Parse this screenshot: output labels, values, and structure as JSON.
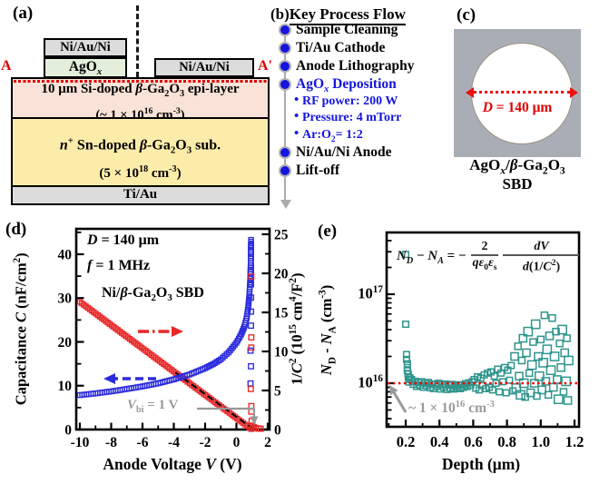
{
  "panel_a": {
    "label": "(a)",
    "section_left": "A",
    "section_right": "A'",
    "anode_metal_label": "Ni/Au/Ni",
    "agox_label_html": "AgO<sub><i>x</i></sub>",
    "cathode_pad_label": "Ni/Au/Ni",
    "epi_line1_html": "10 μm Si-doped <i>β</i>-Ga<sub>2</sub>O<sub>3</sub> epi-layer",
    "epi_line2_html": "(~ 1 × 10<sup>16</sup> cm<sup>-3</sup>)",
    "sub_line1_html": "<i>n</i><sup>+</sup> Sn-doped <i>β</i>-Ga<sub>2</sub>O<sub>3</sub> sub.",
    "sub_line2_html": "(5 × 10<sup>18</sup> cm<sup>-3</sup>)",
    "bottom_metal_label": "Ti/Au",
    "colors": {
      "metal": "#dcdcdc",
      "agox": "#e3efda",
      "epi": "#f9e2d8",
      "substrate": "#fcecaa",
      "marker_red": "#e00000"
    }
  },
  "panel_b": {
    "label": "(b)",
    "title": "Key Process Flow",
    "accent_blue": "#1515dd",
    "items": [
      {
        "type": "main",
        "accent": false,
        "label_html": "Sample Cleaning"
      },
      {
        "type": "main",
        "accent": false,
        "label_html": "Ti/Au Cathode"
      },
      {
        "type": "main",
        "accent": false,
        "label_html": "Anode Lithography"
      },
      {
        "type": "main",
        "accent": true,
        "label_html": "AgO<sub><i>x</i></sub> Deposition"
      },
      {
        "type": "sub",
        "accent": true,
        "label_html": "RF power: 200 W"
      },
      {
        "type": "sub",
        "accent": true,
        "label_html": "Pressure: 4 mTorr"
      },
      {
        "type": "sub",
        "accent": true,
        "label_html": "Ar:O<sub>2</sub>= 1:2"
      },
      {
        "type": "main",
        "accent": false,
        "label_html": "Ni/Au/Ni Anode"
      },
      {
        "type": "main",
        "accent": false,
        "label_html": "Lift-off"
      }
    ]
  },
  "panel_c": {
    "label": "(c)",
    "diameter_html": "<i>D</i> = 140 μm",
    "caption_line1_html": "AgO<sub><i>x</i></sub>/<i>β</i>-Ga<sub>2</sub>O<sub>3</sub>",
    "caption_line2": "SBD",
    "photo_bg": "#a9aeb6",
    "arrow_red": "#ee1111"
  },
  "chart_data": [
    {
      "id": "panel_d_cv",
      "panel_label": "(d)",
      "type": "scatter",
      "xlabel_html": "Anode Voltage <i>V</i> (V)",
      "ylabel_left_html": "Capacitance <i>C</i> (nF/cm<sup>2</sup>)",
      "ylabel_right_html": "1/<i>C</i><sup>2</sup> (10<sup>15</sup> cm<sup>4</sup>/F<sup>2</sup>)",
      "xlim": [
        -10,
        2
      ],
      "ylim_left": [
        0,
        45.8
      ],
      "ylim_right": [
        0,
        25.7
      ],
      "xticks": [
        -10,
        -8,
        -6,
        -4,
        -2,
        0,
        2
      ],
      "yticks_left": [
        0,
        10,
        20,
        30,
        40
      ],
      "yticks_right": [
        0,
        5,
        10,
        15,
        20,
        25
      ],
      "annotation_line1_html": "<i>D</i> = 140 μm",
      "annotation_line2_html": "<i>f</i> = 1 MHz",
      "annotation_line3_html": "Ni/<i>β</i>-Ga<sub>2</sub>O<sub>3</sub> SBD",
      "vbi_annotation_html": "<i>V</i><sub>bi</sub> = 1 V",
      "colors": {
        "capacitance": "#2b2bdd",
        "inverse_c2": "#ea2727",
        "fit_line": "#000000",
        "annotation_gray": "#989898"
      },
      "series": [
        {
          "name": "capacitance_C",
          "axis": "left",
          "marker": "open-square",
          "color": "#2b2bdd",
          "points": [
            [
              -10,
              7.85
            ],
            [
              -9,
              8.25
            ],
            [
              -8,
              8.7
            ],
            [
              -7,
              9.25
            ],
            [
              -6,
              9.85
            ],
            [
              -5,
              10.55
            ],
            [
              -4,
              11.45
            ],
            [
              -3,
              12.55
            ],
            [
              -2,
              14.0
            ],
            [
              -1.5,
              14.9
            ],
            [
              -1,
              16.0
            ],
            [
              -0.5,
              17.6
            ],
            [
              0,
              19.8
            ],
            [
              0.3,
              21.7
            ],
            [
              0.5,
              23.4
            ],
            [
              0.65,
              25.4
            ],
            [
              0.75,
              27.8
            ],
            [
              0.82,
              30.5
            ],
            [
              0.87,
              33.5
            ],
            [
              0.9,
              36.5
            ],
            [
              0.92,
              39.5
            ],
            [
              0.93,
              42.0
            ],
            [
              0.935,
              43.3
            ]
          ]
        },
        {
          "name": "inverse_C2",
          "axis": "right",
          "marker": "open-square",
          "color": "#ea2727",
          "points": [
            [
              -10,
              16.35
            ],
            [
              0.95,
              0.06
            ]
          ]
        },
        {
          "name": "capacitance_forward_scatter",
          "axis": "right",
          "marker": "open-square",
          "color": "#2b2bdd",
          "points": [
            [
              0.93,
              23.5
            ],
            [
              0.93,
              22.7
            ],
            [
              0.93,
              21.9
            ],
            [
              0.93,
              21.0
            ],
            [
              0.93,
              20.2
            ],
            [
              0.93,
              19.4
            ],
            [
              0.93,
              18.6
            ],
            [
              0.93,
              16.9
            ],
            [
              0.93,
              15.1
            ],
            [
              0.93,
              13.3
            ],
            [
              0.9,
              10.1
            ],
            [
              0.93,
              8.1
            ],
            [
              0.9,
              5.9
            ]
          ]
        },
        {
          "name": "inverse_C2_forward_scatter",
          "axis": "right",
          "marker": "open-square",
          "color": "#ea2727",
          "points": [
            [
              0.95,
              19.6
            ],
            [
              0.95,
              11.8
            ],
            [
              0.95,
              10.5
            ],
            [
              0.92,
              5.2
            ],
            [
              0.95,
              3.0
            ],
            [
              0.95,
              2.3
            ],
            [
              0.97,
              1.1
            ],
            [
              1.02,
              0.5
            ],
            [
              1.12,
              0.3
            ],
            [
              1.25,
              0.18
            ],
            [
              1.42,
              0.12
            ],
            [
              1.55,
              0.1
            ]
          ]
        }
      ],
      "fit_line": {
        "axis": "right",
        "from": [
          -3.9,
          7.3
        ],
        "to": [
          1.1,
          0.02
        ]
      }
    },
    {
      "id": "panel_e_doping",
      "panel_label": "(e)",
      "type": "scatter",
      "xlabel_html": "Depth (μm)",
      "ylabel_html": "<i>N</i><sub>D</sub> - <i>N</i><sub>A</sub> (cm<sup>-3</sup>)",
      "xlim": [
        0.08,
        1.23
      ],
      "xticks": [
        0.2,
        0.4,
        0.6,
        0.8,
        1.0,
        1.2
      ],
      "y_scale": "log",
      "y_unit": "1e16 cm^-3",
      "ylog_ticks_html": [
        "10<sup>16</sup>",
        "10<sup>17</sup>"
      ],
      "marker_color": "#2f958d",
      "reference_line": {
        "value_1e16": 1,
        "color": "#f10000",
        "style": "dotted"
      },
      "reference_annotation_html": "~ 1 × 10<sup>16</sup> cm<sup>-3</sup>",
      "formula": {
        "lhs_html": "<i>N<sub>D</sub></i> − <i>N<sub>A</sub></i> = −",
        "frac1_num_html": "2",
        "frac1_den_html": "<i>qε</i><sub>0</sub><i>ε</i><sub>s</sub>",
        "frac2_num_html": "<i>dV</i>",
        "frac2_den_html": "<i>d</i>(1/<i>C</i><sup>2</sup>)"
      },
      "points": [
        [
          0.2,
          28
        ],
        [
          0.2,
          4.6
        ],
        [
          0.205,
          2.1
        ],
        [
          0.205,
          1.85
        ],
        [
          0.21,
          1.65
        ],
        [
          0.21,
          1.5
        ],
        [
          0.21,
          1.38
        ],
        [
          0.215,
          1.27
        ],
        [
          0.215,
          1.17
        ],
        [
          0.22,
          1.1
        ],
        [
          0.22,
          1.03
        ],
        [
          0.225,
          1.15
        ],
        [
          0.235,
          1.1
        ],
        [
          0.245,
          0.97
        ],
        [
          0.255,
          1.05
        ],
        [
          0.265,
          0.92
        ],
        [
          0.275,
          1.02
        ],
        [
          0.285,
          0.95
        ],
        [
          0.295,
          1.04
        ],
        [
          0.305,
          0.9
        ],
        [
          0.315,
          1.0
        ],
        [
          0.325,
          0.94
        ],
        [
          0.335,
          1.02
        ],
        [
          0.345,
          0.89
        ],
        [
          0.355,
          0.98
        ],
        [
          0.365,
          0.87
        ],
        [
          0.375,
          0.97
        ],
        [
          0.385,
          0.92
        ],
        [
          0.395,
          1.0
        ],
        [
          0.405,
          0.86
        ],
        [
          0.415,
          0.96
        ],
        [
          0.425,
          0.9
        ],
        [
          0.435,
          0.98
        ],
        [
          0.445,
          0.85
        ],
        [
          0.455,
          0.95
        ],
        [
          0.465,
          0.88
        ],
        [
          0.475,
          0.97
        ],
        [
          0.485,
          0.86
        ],
        [
          0.495,
          0.93
        ],
        [
          0.505,
          0.89
        ],
        [
          0.515,
          0.96
        ],
        [
          0.525,
          0.87
        ],
        [
          0.535,
          0.95
        ],
        [
          0.545,
          0.9
        ],
        [
          0.555,
          0.99
        ],
        [
          0.565,
          0.92
        ],
        [
          0.575,
          1.01
        ],
        [
          0.585,
          0.95
        ],
        [
          0.595,
          1.04
        ],
        [
          0.605,
          1.1
        ],
        [
          0.615,
          0.88
        ],
        [
          0.625,
          1.18
        ],
        [
          0.635,
          0.84
        ],
        [
          0.645,
          1.14
        ],
        [
          0.655,
          0.94
        ],
        [
          0.665,
          1.24
        ],
        [
          0.675,
          0.87
        ],
        [
          0.685,
          1.3
        ],
        [
          0.695,
          0.9
        ],
        [
          0.705,
          1.34
        ],
        [
          0.715,
          0.84
        ],
        [
          0.725,
          1.2
        ],
        [
          0.735,
          1.0
        ],
        [
          0.745,
          1.44
        ],
        [
          0.755,
          0.8
        ],
        [
          0.765,
          1.3
        ],
        [
          0.775,
          1.04
        ],
        [
          0.785,
          1.5
        ],
        [
          0.795,
          0.78
        ],
        [
          0.805,
          1.4
        ],
        [
          0.815,
          1.08
        ],
        [
          0.825,
          1.58
        ],
        [
          0.835,
          0.82
        ],
        [
          0.845,
          2.0
        ],
        [
          0.855,
          0.88
        ],
        [
          0.865,
          2.6
        ],
        [
          0.872,
          1.2
        ],
        [
          0.88,
          0.74
        ],
        [
          0.888,
          1.8
        ],
        [
          0.895,
          3.2
        ],
        [
          0.9,
          1.0
        ],
        [
          0.908,
          0.7
        ],
        [
          0.915,
          2.2
        ],
        [
          0.925,
          3.8
        ],
        [
          0.932,
          1.3
        ],
        [
          0.94,
          0.78
        ],
        [
          0.948,
          1.6
        ],
        [
          0.955,
          2.9
        ],
        [
          0.962,
          1.0
        ],
        [
          0.97,
          4.6
        ],
        [
          0.977,
          0.72
        ],
        [
          0.985,
          2.0
        ],
        [
          0.992,
          1.2
        ],
        [
          1.0,
          3.1
        ],
        [
          1.007,
          0.84
        ],
        [
          1.015,
          1.7
        ],
        [
          1.022,
          5.8
        ],
        [
          1.03,
          1.05
        ],
        [
          1.038,
          2.4
        ],
        [
          1.045,
          0.74
        ],
        [
          1.052,
          3.4
        ],
        [
          1.06,
          1.4
        ],
        [
          1.068,
          5.4
        ],
        [
          1.075,
          0.9
        ],
        [
          1.082,
          2.0
        ],
        [
          1.09,
          3.8
        ],
        [
          1.097,
          1.1
        ],
        [
          1.105,
          0.66
        ],
        [
          1.112,
          2.8
        ],
        [
          1.12,
          1.5
        ],
        [
          1.128,
          4.0
        ],
        [
          1.135,
          0.8
        ],
        [
          1.142,
          2.2
        ],
        [
          1.15,
          1.05
        ],
        [
          1.155,
          3.2
        ],
        [
          1.16,
          0.64
        ],
        [
          1.165,
          1.8
        ]
      ]
    }
  ]
}
